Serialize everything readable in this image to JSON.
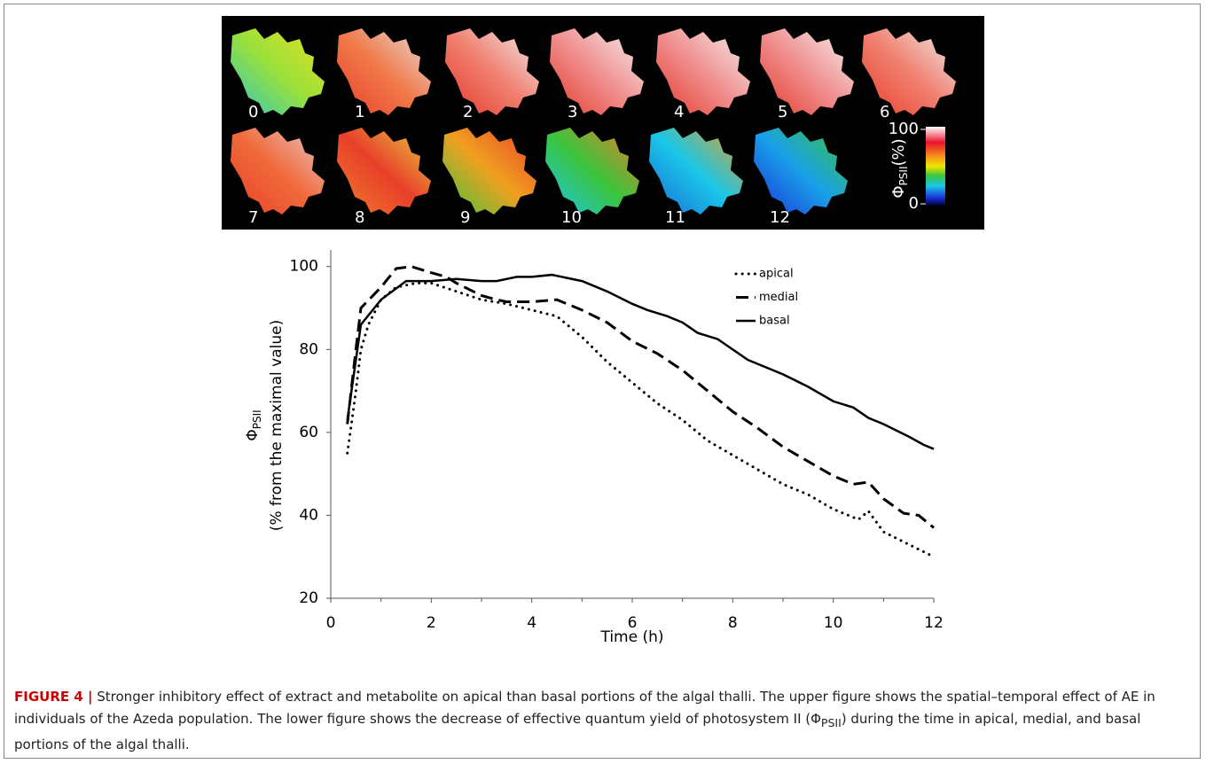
{
  "panel": {
    "frames": [
      "0",
      "1",
      "2",
      "3",
      "4",
      "5",
      "6",
      "7",
      "8",
      "9",
      "10",
      "11",
      "12"
    ],
    "colorbar": {
      "top": "100",
      "bottom": "0",
      "symbol": "Φ",
      "subscript": "PSII",
      "unit": "(%)"
    }
  },
  "chart_data": {
    "type": "line",
    "xlabel": "Time (h)",
    "ylabel": {
      "symbol": "Φ",
      "subscript": "PSII",
      "text": "(% from the maximal value)"
    },
    "xlim": [
      0,
      12
    ],
    "xticks": [
      0,
      2,
      4,
      6,
      8,
      10,
      12
    ],
    "xminor": [
      1,
      3,
      5,
      7,
      9,
      11
    ],
    "ylim": [
      20,
      104
    ],
    "yticks": [
      20,
      40,
      60,
      80,
      100
    ],
    "legend": "upper right",
    "series": [
      {
        "name": "apical",
        "color": "#000000",
        "style": "dotted",
        "x": [
          0.33,
          0.4,
          0.5,
          0.6,
          0.75,
          1,
          1.3,
          1.7,
          2,
          2.5,
          3,
          3.5,
          4,
          4.5,
          5,
          5.5,
          6,
          6.5,
          7,
          7.5,
          8,
          8.5,
          9,
          9.5,
          10,
          10.5,
          10.7,
          11,
          11.5,
          12
        ],
        "values": [
          55,
          61,
          70,
          80,
          86,
          92,
          95,
          96,
          96,
          94,
          92,
          91,
          89.5,
          88,
          83,
          77,
          72,
          67,
          63,
          58,
          54.5,
          51,
          47.5,
          45,
          41.5,
          39,
          41,
          36,
          33,
          30
        ]
      },
      {
        "name": "medial",
        "color": "#000000",
        "style": "dashed",
        "x": [
          0.33,
          0.5,
          0.6,
          1,
          1.3,
          1.6,
          2,
          2.3,
          2.5,
          3,
          3.3,
          3.5,
          4,
          4.5,
          5,
          5.5,
          6,
          6.5,
          7,
          7.5,
          8,
          8.5,
          9,
          9.5,
          10,
          10.4,
          10.7,
          11,
          11.4,
          11.7,
          12
        ],
        "values": [
          62,
          80,
          90,
          95,
          99.5,
          100,
          98.5,
          97.5,
          96,
          93,
          92,
          91.5,
          91.5,
          92,
          89.5,
          86.5,
          82,
          79,
          75,
          70,
          65,
          61,
          56.5,
          53,
          49.5,
          47.5,
          48,
          44,
          40.5,
          40,
          37
        ]
      },
      {
        "name": "basal",
        "color": "#000000",
        "style": "solid",
        "x": [
          0.33,
          0.6,
          1,
          1.5,
          2,
          2.5,
          3,
          3.3,
          3.7,
          4,
          4.4,
          5,
          5.5,
          6,
          6.3,
          6.7,
          7,
          7.3,
          7.7,
          8.3,
          9,
          9.5,
          10,
          10.4,
          10.7,
          11,
          11.5,
          11.8,
          12
        ],
        "values": [
          63,
          86,
          92,
          96.5,
          96.5,
          97,
          96.5,
          96.5,
          97.5,
          97.5,
          98,
          96.5,
          94,
          91,
          89.5,
          88,
          86.5,
          84,
          82.5,
          77.5,
          74,
          71,
          67.5,
          66,
          63.5,
          62,
          59,
          57,
          56
        ]
      }
    ]
  },
  "caption": {
    "label": "FIGURE 4 |",
    "before": "Stronger inhibitory effect of extract and metabolite on apical than basal portions of the algal thalli. The upper figure shows the spatial–temporal effect of AE in individuals of the Azeda population. The lower figure shows the decrease of effective quantum yield of photosystem II (Φ",
    "sub": "PSII",
    "after": ") during the time in apical, medial, and basal portions of the algal thalli."
  }
}
